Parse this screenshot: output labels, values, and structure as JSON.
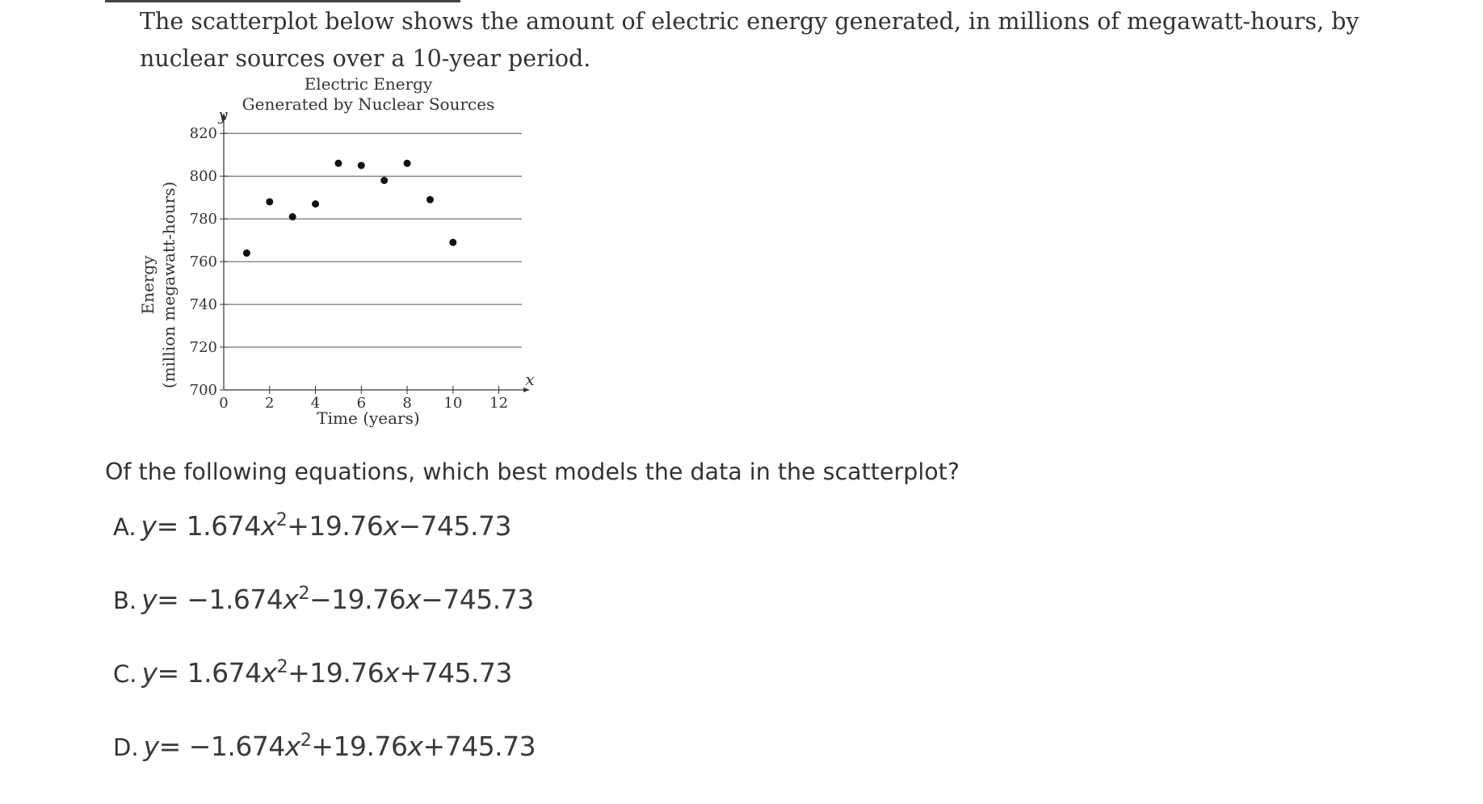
{
  "intro_text": "The scatterplot below shows the amount of electric energy generated, in millions of megawatt-hours, by nuclear sources over a 10-year period.",
  "question": "Of the following equations, which best models the data in the scatterplot?",
  "options": [
    {
      "letter": "A.",
      "pre": "= 1.674",
      "mid": "+19.76",
      "post": "−745.73",
      "lead": ""
    },
    {
      "letter": "B.",
      "pre": "= −1.674",
      "mid": "−19.76",
      "post": "−745.73",
      "lead": ""
    },
    {
      "letter": "C.",
      "pre": "= 1.674",
      "mid": "+19.76",
      "post": "+745.73",
      "lead": ""
    },
    {
      "letter": "D.",
      "pre": "= −1.674",
      "mid": "+19.76",
      "post": "+745.73",
      "lead": ""
    }
  ],
  "chart_data": {
    "type": "scatter",
    "title": "Electric Energy",
    "subtitle": "Generated by Nuclear Sources",
    "xlabel": "Time (years)",
    "ylabel_line1": "Energy",
    "ylabel_line2": "(million megawatt-hours)",
    "x_axis_var": "x",
    "y_axis_var": "y",
    "xlim": [
      0,
      13
    ],
    "ylim": [
      700,
      825
    ],
    "xticks": [
      0,
      2,
      4,
      6,
      8,
      10,
      12
    ],
    "yticks": [
      700,
      720,
      740,
      760,
      780,
      800,
      820
    ],
    "grid": "horizontal",
    "points": [
      {
        "x": 1,
        "y": 764
      },
      {
        "x": 2,
        "y": 788
      },
      {
        "x": 3,
        "y": 781
      },
      {
        "x": 4,
        "y": 787
      },
      {
        "x": 5,
        "y": 806
      },
      {
        "x": 6,
        "y": 805
      },
      {
        "x": 7,
        "y": 798
      },
      {
        "x": 8,
        "y": 806
      },
      {
        "x": 9,
        "y": 789
      },
      {
        "x": 10,
        "y": 769
      }
    ]
  }
}
